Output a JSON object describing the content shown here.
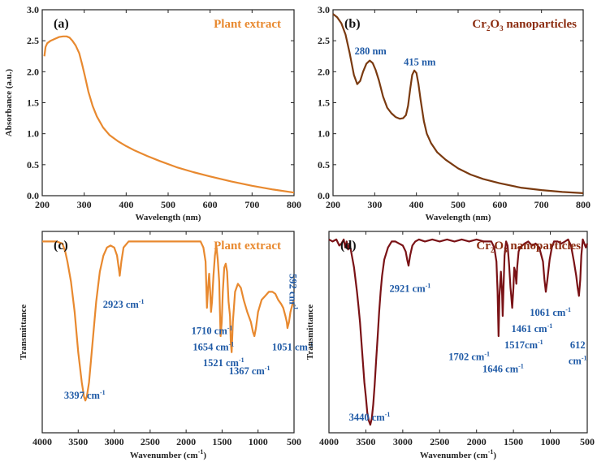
{
  "colors": {
    "orange": "#e8892f",
    "brown": "#7a3a10",
    "maroon": "#7a1216",
    "annotation_blue": "#1f5aa6",
    "title_orange": "#e8892f",
    "title_brown": "#8b2c10"
  },
  "chart_data": [
    {
      "id": "a",
      "type": "line",
      "panel_label": "(a)",
      "title": "Plant extract",
      "xlabel": "Wavelength (nm)",
      "ylabel": "Absorbance (a.u.)",
      "xlim": [
        200,
        800
      ],
      "ylim": [
        0.0,
        3.0
      ],
      "xticks": [
        "200",
        "300",
        "400",
        "500",
        "600",
        "700",
        "800"
      ],
      "yticks": [
        "0.0",
        "0.5",
        "1.0",
        "1.5",
        "2.0",
        "2.5",
        "3.0"
      ],
      "series": [
        {
          "name": "Plant extract",
          "x": [
            205,
            208,
            212,
            220,
            230,
            240,
            250,
            258,
            265,
            272,
            280,
            288,
            295,
            302,
            310,
            320,
            330,
            345,
            360,
            380,
            400,
            420,
            450,
            480,
            520,
            560,
            600,
            650,
            700,
            750,
            800
          ],
          "y": [
            2.25,
            2.4,
            2.46,
            2.5,
            2.53,
            2.56,
            2.57,
            2.57,
            2.55,
            2.5,
            2.42,
            2.3,
            2.12,
            1.92,
            1.68,
            1.45,
            1.28,
            1.1,
            0.98,
            0.88,
            0.8,
            0.73,
            0.64,
            0.56,
            0.46,
            0.38,
            0.31,
            0.23,
            0.16,
            0.1,
            0.05
          ]
        }
      ]
    },
    {
      "id": "b",
      "type": "line",
      "panel_label": "(b)",
      "title_main": "Cr",
      "title_sub1": "2",
      "title_mid": "O",
      "title_sub2": "3",
      "title_rest": " nanoparticles",
      "xlabel": "Wavelength (nm)",
      "ylabel": "",
      "xlim": [
        200,
        800
      ],
      "ylim": [
        0.0,
        3.0
      ],
      "xticks": [
        "200",
        "300",
        "400",
        "500",
        "600",
        "700",
        "800"
      ],
      "yticks": [
        "0.0",
        "0.5",
        "1.0",
        "1.5",
        "2.0",
        "2.5",
        "3.0"
      ],
      "annotations": [
        {
          "text": "280 nm",
          "x": 290,
          "y": 2.28
        },
        {
          "text": "415 nm",
          "x": 408,
          "y": 2.1
        }
      ],
      "series": [
        {
          "name": "Cr2O3 nanoparticles",
          "x": [
            200,
            210,
            220,
            230,
            240,
            250,
            258,
            265,
            272,
            280,
            288,
            295,
            302,
            310,
            320,
            330,
            340,
            350,
            360,
            368,
            375,
            380,
            385,
            390,
            395,
            400,
            405,
            410,
            418,
            425,
            435,
            450,
            470,
            500,
            530,
            560,
            600,
            650,
            700,
            750,
            800
          ],
          "y": [
            2.93,
            2.88,
            2.78,
            2.6,
            2.3,
            1.95,
            1.8,
            1.85,
            2.0,
            2.13,
            2.18,
            2.14,
            2.03,
            1.86,
            1.6,
            1.42,
            1.33,
            1.27,
            1.24,
            1.25,
            1.3,
            1.45,
            1.72,
            1.95,
            2.02,
            1.98,
            1.8,
            1.55,
            1.2,
            1.0,
            0.85,
            0.7,
            0.58,
            0.44,
            0.34,
            0.27,
            0.2,
            0.13,
            0.09,
            0.06,
            0.04
          ]
        }
      ]
    },
    {
      "id": "c",
      "type": "line",
      "panel_label": "(c)",
      "title": "Plant extract",
      "xlabel": "Wavenumber (cm",
      "xlabel_sup": "-1",
      "xlabel_close": ")",
      "ylabel": "Transmittance",
      "xlim": [
        4000,
        500
      ],
      "ylim": [
        0,
        100
      ],
      "xticks": [
        "4000",
        "3500",
        "3000",
        "2500",
        "2000",
        "1500",
        "1000",
        "500"
      ],
      "annotations": [
        {
          "text": "2923 cm",
          "sup": "-1",
          "x": 2870,
          "y": 62
        },
        {
          "text": "1710 cm",
          "sup": "-1",
          "x": 1640,
          "y": 49
        },
        {
          "text": "1654 cm",
          "sup": "-1",
          "x": 1620,
          "y": 41
        },
        {
          "text": "1521 cm",
          "sup": "-1",
          "x": 1480,
          "y": 33
        },
        {
          "text": "1367 cm",
          "sup": "-1",
          "x": 1120,
          "y": 29
        },
        {
          "text": "1051 cm",
          "sup": "-1",
          "x": 520,
          "y": 41
        },
        {
          "text": "3397 cm",
          "sup": "-1",
          "x": 3410,
          "y": 17
        },
        {
          "text": "592 cm",
          "sup": "-1",
          "x": 560,
          "y": 70,
          "rotate": true
        }
      ],
      "series": [
        {
          "name": "Plant extract",
          "x": [
            4000,
            3800,
            3720,
            3680,
            3650,
            3600,
            3550,
            3500,
            3450,
            3420,
            3400,
            3380,
            3350,
            3300,
            3250,
            3200,
            3150,
            3100,
            3050,
            3000,
            2960,
            2930,
            2923,
            2900,
            2870,
            2800,
            2700,
            2500,
            2300,
            2100,
            1900,
            1850,
            1800,
            1760,
            1730,
            1710,
            1695,
            1680,
            1665,
            1654,
            1640,
            1620,
            1600,
            1580,
            1560,
            1540,
            1530,
            1521,
            1505,
            1490,
            1470,
            1450,
            1430,
            1410,
            1390,
            1380,
            1367,
            1350,
            1320,
            1280,
            1240,
            1200,
            1150,
            1100,
            1070,
            1051,
            1030,
            1000,
            950,
            900,
            850,
            800,
            760,
            720,
            680,
            650,
            620,
            600,
            592,
            570,
            550,
            520,
            500
          ],
          "y": [
            95,
            95,
            94,
            90,
            85,
            75,
            60,
            40,
            25,
            18,
            16,
            18,
            25,
            45,
            65,
            80,
            88,
            92,
            93,
            92,
            88,
            80,
            78,
            85,
            92,
            95,
            95,
            95,
            95,
            95,
            95,
            95,
            95,
            92,
            85,
            62,
            72,
            79,
            70,
            60,
            65,
            78,
            88,
            93,
            86,
            75,
            60,
            48,
            55,
            70,
            82,
            84,
            80,
            65,
            58,
            45,
            40,
            55,
            70,
            74,
            72,
            66,
            60,
            55,
            50,
            48,
            52,
            60,
            66,
            68,
            70,
            70,
            69,
            66,
            64,
            62,
            58,
            55,
            52,
            55,
            60,
            64,
            66
          ]
        }
      ]
    },
    {
      "id": "d",
      "type": "line",
      "panel_label": "(d)",
      "title_main": "Cr",
      "title_sub1": "2",
      "title_mid": "O",
      "title_sub2": "3",
      "title_rest": " nanoparticles",
      "xlabel": "Wavenumber (cm",
      "xlabel_sup": "-1",
      "xlabel_close": ")",
      "ylabel": "Transmittance",
      "xlim": [
        4000,
        500
      ],
      "ylim": [
        0,
        100
      ],
      "xticks": [
        "4000",
        "3500",
        "3000",
        "2500",
        "2000",
        "1500",
        "1000",
        "500"
      ],
      "annotations": [
        {
          "text": "2921 cm",
          "sup": "-1",
          "x": 2900,
          "y": 70
        },
        {
          "text": "1061 cm",
          "sup": "-1",
          "x": 1000,
          "y": 58
        },
        {
          "text": "1461 cm",
          "sup": "-1",
          "x": 1250,
          "y": 50
        },
        {
          "text": "1517cm",
          "sup": "-1",
          "x": 1360,
          "y": 42
        },
        {
          "text": "1702 cm",
          "sup": "-1",
          "x": 2100,
          "y": 36
        },
        {
          "text": "1646 cm",
          "sup": "-1",
          "x": 1640,
          "y": 30
        },
        {
          "text": "612",
          "sup": "",
          "x": 630,
          "y": 42
        },
        {
          "text": "cm",
          "sup": "-1",
          "x": 630,
          "y": 34
        },
        {
          "text": "3440 cm",
          "sup": "-1",
          "x": 3450,
          "y": 6
        }
      ],
      "series": [
        {
          "name": "Cr2O3 nanoparticles",
          "x": [
            4000,
            3950,
            3900,
            3860,
            3830,
            3800,
            3780,
            3760,
            3740,
            3720,
            3700,
            3680,
            3660,
            3640,
            3620,
            3600,
            3580,
            3560,
            3540,
            3520,
            3500,
            3480,
            3460,
            3440,
            3420,
            3400,
            3380,
            3360,
            3340,
            3320,
            3300,
            3280,
            3250,
            3200,
            3150,
            3100,
            3050,
            3000,
            2960,
            2940,
            2921,
            2900,
            2870,
            2830,
            2780,
            2700,
            2600,
            2500,
            2400,
            2300,
            2200,
            2100,
            2000,
            1900,
            1800,
            1760,
            1730,
            1715,
            1702,
            1690,
            1670,
            1655,
            1646,
            1635,
            1620,
            1600,
            1580,
            1560,
            1540,
            1530,
            1517,
            1500,
            1490,
            1475,
            1461,
            1450,
            1430,
            1410,
            1380,
            1350,
            1300,
            1250,
            1200,
            1150,
            1100,
            1080,
            1061,
            1040,
            1010,
            980,
            950,
            900,
            850,
            800,
            760,
            720,
            680,
            650,
            630,
            612,
            595,
            580,
            560,
            540,
            520,
            500
          ],
          "y": [
            96,
            95,
            96,
            93,
            94,
            96,
            92,
            95,
            91,
            94,
            90,
            86,
            82,
            76,
            70,
            63,
            55,
            45,
            35,
            25,
            18,
            10,
            6,
            4,
            7,
            14,
            24,
            36,
            48,
            60,
            70,
            78,
            86,
            92,
            95,
            95,
            94,
            93,
            90,
            86,
            83,
            88,
            93,
            95,
            96,
            95,
            96,
            95,
            96,
            95,
            96,
            95,
            96,
            95,
            95,
            92,
            85,
            70,
            48,
            68,
            80,
            70,
            58,
            72,
            88,
            95,
            93,
            84,
            72,
            68,
            62,
            72,
            82,
            80,
            74,
            82,
            90,
            92,
            93,
            94,
            95,
            93,
            94,
            92,
            85,
            76,
            70,
            76,
            86,
            92,
            95,
            95,
            94,
            95,
            96,
            93,
            85,
            78,
            72,
            68,
            76,
            88,
            96,
            94,
            92,
            94
          ]
        }
      ]
    }
  ]
}
